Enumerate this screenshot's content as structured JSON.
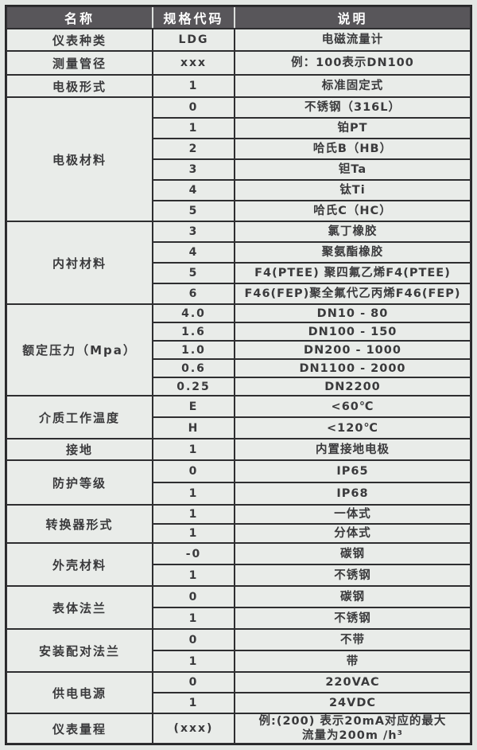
{
  "table": {
    "headers": [
      "名称",
      "规格代码",
      "说明"
    ],
    "groups": [
      {
        "name": "仪表种类",
        "rows": [
          {
            "code": "LDG",
            "desc": "电磁流量计"
          }
        ]
      },
      {
        "name": "测量管径",
        "rows": [
          {
            "code": "xxx",
            "desc": "例：100表示DN100"
          }
        ]
      },
      {
        "name": "电极形式",
        "rows": [
          {
            "code": "1",
            "desc": "标准固定式"
          }
        ]
      },
      {
        "name": "电极材料",
        "rows": [
          {
            "code": "0",
            "desc": "不锈钢（316L）"
          },
          {
            "code": "1",
            "desc": "铂PT"
          },
          {
            "code": "2",
            "desc": "哈氏B（HB）"
          },
          {
            "code": "3",
            "desc": "钽Ta"
          },
          {
            "code": "4",
            "desc": "钛Ti"
          },
          {
            "code": "5",
            "desc": "哈氏C（HC）"
          }
        ]
      },
      {
        "name": "内衬材料",
        "rows": [
          {
            "code": "3",
            "desc": "氯丁橡胶"
          },
          {
            "code": "4",
            "desc": "聚氨酯橡胶"
          },
          {
            "code": "5",
            "desc": "F4(PTEE) 聚四氟乙烯F4(PTEE)"
          },
          {
            "code": "6",
            "desc": "F46(FEP)聚全氟代乙丙烯F46(FEP)"
          }
        ]
      },
      {
        "name": "额定压力（Mpa）",
        "rows": [
          {
            "code": "4.0",
            "desc": "DN10 - 80"
          },
          {
            "code": "1.6",
            "desc": "DN100 - 150"
          },
          {
            "code": "1.0",
            "desc": "DN200 - 1000"
          },
          {
            "code": "0.6",
            "desc": "DN1100 - 2000"
          },
          {
            "code": "0.25",
            "desc": "DN2200"
          }
        ]
      },
      {
        "name": "介质工作温度",
        "rows": [
          {
            "code": "E",
            "desc": "<60℃"
          },
          {
            "code": "H",
            "desc": "<120℃"
          }
        ]
      },
      {
        "name": "接地",
        "rows": [
          {
            "code": "1",
            "desc": "内置接地电极"
          }
        ]
      },
      {
        "name": "防护等级",
        "rows": [
          {
            "code": "0",
            "desc": "IP65"
          },
          {
            "code": "1",
            "desc": "IP68"
          }
        ]
      },
      {
        "name": "转换器形式",
        "rows": [
          {
            "code": "1",
            "desc": "一体式"
          },
          {
            "code": "1",
            "desc": "分体式"
          }
        ]
      },
      {
        "name": "外壳材料",
        "rows": [
          {
            "code": "-0",
            "desc": "碳钢"
          },
          {
            "code": "1",
            "desc": "不锈钢"
          }
        ]
      },
      {
        "name": "表体法兰",
        "rows": [
          {
            "code": "0",
            "desc": "碳钢"
          },
          {
            "code": "1",
            "desc": "不锈钢"
          }
        ]
      },
      {
        "name": "安装配对法兰",
        "rows": [
          {
            "code": "0",
            "desc": "不带"
          },
          {
            "code": "1",
            "desc": "带"
          }
        ]
      },
      {
        "name": "供电电源",
        "rows": [
          {
            "code": "0",
            "desc": "220VAC"
          },
          {
            "code": "1",
            "desc": "24VDC"
          }
        ]
      },
      {
        "name": "仪表量程",
        "rows": [
          {
            "code": "(xxx)",
            "desc": "例:(200) 表示20mA对应的最大",
            "desc2": "流量为200m /h³"
          }
        ]
      }
    ],
    "colors": {
      "header_bg": "#58565a",
      "header_text": "#ffffff",
      "cell_bg": "#e9ece9",
      "grid_line": "#2e2e30",
      "text": "#3a3a3c"
    }
  }
}
